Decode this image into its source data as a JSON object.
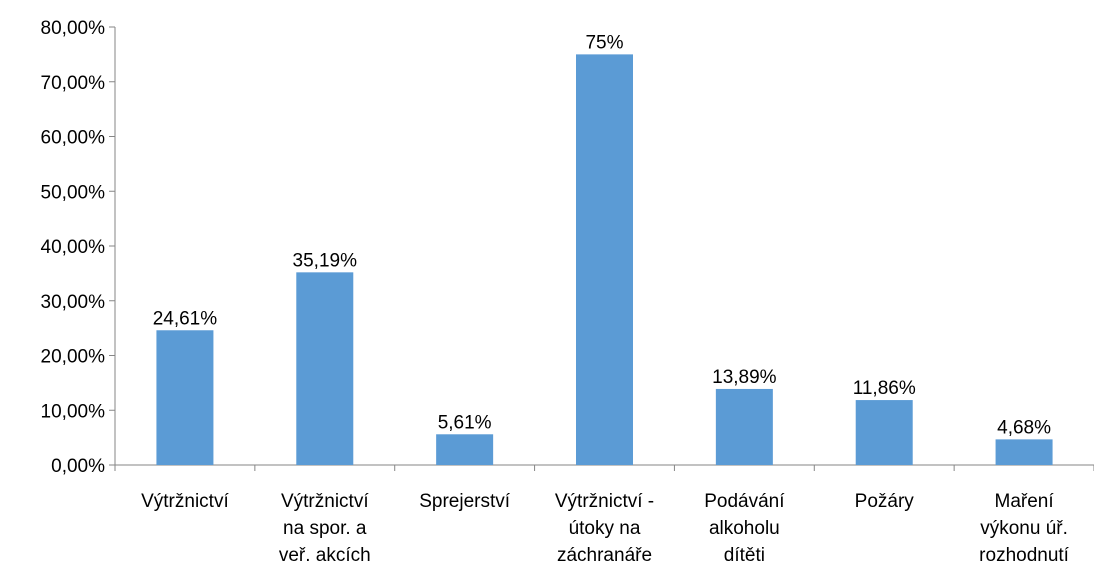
{
  "chart_data": {
    "type": "bar",
    "categories": [
      "Výtržnictví",
      "Výtržnictví na spor. a veř. akcích",
      "Sprejerství",
      "Výtržnictví - útoky na záchranáře",
      "Podávání alkoholu dítěti",
      "Požáry",
      "Maření výkonu úř. rozhodnutí"
    ],
    "values": [
      24.61,
      35.19,
      5.61,
      75,
      13.89,
      11.86,
      4.68
    ],
    "value_labels": [
      "24,61%",
      "35,19%",
      "5,61%",
      "75%",
      "13,89%",
      "11,86%",
      "4,68%"
    ],
    "color": "#5b9bd5",
    "ylim": [
      0,
      80
    ],
    "yticks": [
      {
        "value": 0,
        "label": "0,00%"
      },
      {
        "value": 10,
        "label": "10,00%"
      },
      {
        "value": 20,
        "label": "20,00%"
      },
      {
        "value": 30,
        "label": "30,00%"
      },
      {
        "value": 40,
        "label": "40,00%"
      },
      {
        "value": 50,
        "label": "50,00%"
      },
      {
        "value": 60,
        "label": "60,00%"
      },
      {
        "value": 70,
        "label": "70,00%"
      },
      {
        "value": 80,
        "label": "80,00%"
      }
    ],
    "grid": false
  }
}
